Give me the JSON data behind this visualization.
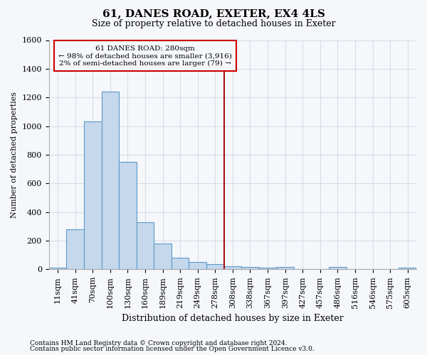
{
  "title1": "61, DANES ROAD, EXETER, EX4 4LS",
  "title2": "Size of property relative to detached houses in Exeter",
  "xlabel": "Distribution of detached houses by size in Exeter",
  "ylabel": "Number of detached properties",
  "footnote1": "Contains HM Land Registry data © Crown copyright and database right 2024.",
  "footnote2": "Contains public sector information licensed under the Open Government Licence v3.0.",
  "annotation_line1": "61 DANES ROAD: 280sqm",
  "annotation_line2": "← 98% of detached houses are smaller (3,916)",
  "annotation_line3": "2% of semi-detached houses are larger (79) →",
  "bar_categories": [
    "11sqm",
    "41sqm",
    "70sqm",
    "100sqm",
    "130sqm",
    "160sqm",
    "189sqm",
    "219sqm",
    "249sqm",
    "278sqm",
    "308sqm",
    "338sqm",
    "367sqm",
    "397sqm",
    "427sqm",
    "457sqm",
    "486sqm",
    "516sqm",
    "546sqm",
    "575sqm",
    "605sqm"
  ],
  "bar_values": [
    10,
    280,
    1030,
    1240,
    750,
    330,
    180,
    82,
    50,
    35,
    20,
    15,
    10,
    15,
    0,
    0,
    15,
    0,
    0,
    0,
    12
  ],
  "bar_color": "#c5d8ec",
  "bar_edge_color": "#5b9ac8",
  "vline_color": "#aa1111",
  "vline_x": 9.5,
  "annotation_box_edge": "#cc0000",
  "background_color": "#f5f7fb",
  "grid_color": "#d8dde8",
  "ylim": [
    0,
    1600
  ],
  "yticks": [
    0,
    200,
    400,
    600,
    800,
    1000,
    1200,
    1400,
    1600
  ],
  "title1_fontsize": 11,
  "title2_fontsize": 9,
  "ylabel_fontsize": 8,
  "xlabel_fontsize": 9,
  "tick_fontsize": 8,
  "ann_fontsize": 7.5,
  "footnote_fontsize": 6.5
}
